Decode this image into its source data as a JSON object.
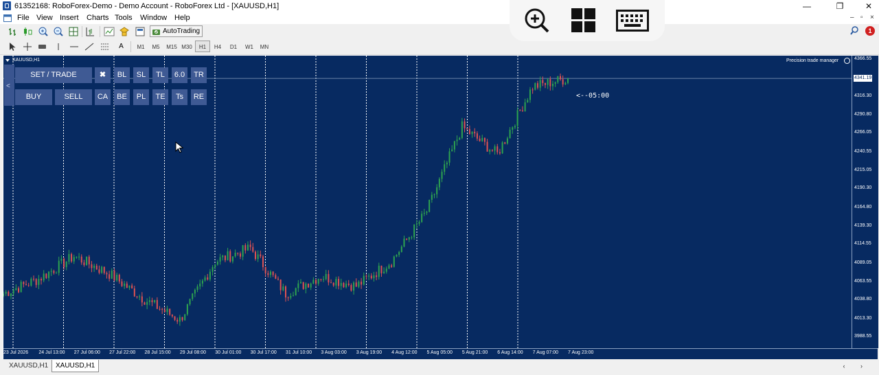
{
  "window": {
    "title": "61352168: RoboForex-Demo - Demo Account - RoboForex Ltd - [XAUUSD,H1]",
    "minimize_glyph": "—",
    "restore_glyph": "❐",
    "close_glyph": "✕"
  },
  "menu": {
    "items": [
      "File",
      "View",
      "Insert",
      "Charts",
      "Tools",
      "Window",
      "Help"
    ],
    "mdi_glyphs": [
      "–",
      "▫",
      "×"
    ]
  },
  "toolbar": {
    "autotrading_label": "AutoTrading",
    "timeframes": [
      "M1",
      "M5",
      "M15",
      "M30",
      "H1",
      "H4",
      "D1",
      "W1",
      "MN"
    ],
    "active_timeframe": "H1",
    "text_tool_label": "A",
    "alert_count": "1"
  },
  "overlay": {
    "icons": [
      "zoom-in-icon",
      "windows-icon",
      "keyboard-icon"
    ]
  },
  "chart": {
    "symbol_label": "XAUUSD,H1",
    "indicator_label": "Precision  trade manager",
    "countdown": "<--05:00",
    "current_price": "4341.19",
    "background": "#072a61",
    "bull_color": "#2ea44f",
    "bear_color": "#e05252",
    "price_axis": [
      "4366.55",
      "4341.19",
      "4316.30",
      "4290.80",
      "4266.05",
      "4240.55",
      "4215.05",
      "4190.30",
      "4164.80",
      "4139.30",
      "4114.55",
      "4089.05",
      "4063.55",
      "4038.80",
      "4013.30",
      "3988.55"
    ],
    "time_axis": [
      "23 Jul 2026",
      "24 Jul 13:00",
      "27 Jul 06:00",
      "27 Jul 22:00",
      "28 Jul 15:00",
      "29 Jul 08:00",
      "30 Jul 01:00",
      "30 Jul 17:00",
      "31 Jul 10:00",
      "3 Aug 03:00",
      "3 Aug 19:00",
      "4 Aug 12:00",
      "5 Aug 05:00",
      "5 Aug 21:00",
      "6 Aug 14:00",
      "7 Aug 07:00",
      "7 Aug 23:00"
    ]
  },
  "trade_panel": {
    "collapse_arrow": "<",
    "row1": [
      "SET / TRADE",
      "✖",
      "BL",
      "SL",
      "TL",
      "6.0",
      "TR"
    ],
    "row2": [
      "BUY",
      "SELL",
      "CA",
      "BE",
      "PL",
      "TE",
      "Ts",
      "RE"
    ]
  },
  "bottom_tabs": {
    "tabs": [
      "XAUUSD,H1",
      "XAUUSD,H1"
    ],
    "active_index": 1,
    "scroll_glyphs": "‹ ›"
  },
  "chart_data": {
    "type": "candlestick",
    "symbol": "XAUUSD",
    "timeframe": "H1",
    "ylim": [
      3988.55,
      4366.55
    ],
    "current_price": 4341.19,
    "x_ticks": [
      "23 Jul 2026",
      "24 Jul 13:00",
      "27 Jul 06:00",
      "27 Jul 22:00",
      "28 Jul 15:00",
      "29 Jul 08:00",
      "30 Jul 01:00",
      "30 Jul 17:00",
      "31 Jul 10:00",
      "3 Aug 03:00",
      "3 Aug 19:00",
      "4 Aug 12:00",
      "5 Aug 05:00",
      "5 Aug 21:00",
      "6 Aug 14:00",
      "7 Aug 07:00",
      "7 Aug 23:00"
    ],
    "period_separators": [
      "24 Jul",
      "27 Jul",
      "28 Jul",
      "29 Jul",
      "30 Jul",
      "31 Jul",
      "3 Aug",
      "4 Aug",
      "5 Aug",
      "6 Aug",
      "7 Aug"
    ],
    "close_path": [
      {
        "x": "23 Jul 2026",
        "close": 4048
      },
      {
        "x": "24 Jul 13:00",
        "close": 4068
      },
      {
        "x": "27 Jul 06:00",
        "close": 4099
      },
      {
        "x": "27 Jul 22:00",
        "close": 4075
      },
      {
        "x": "28 Jul 15:00",
        "close": 4040
      },
      {
        "x": "29 Jul 08:00",
        "close": 4012
      },
      {
        "x": "30 Jul 01:00",
        "close": 4092
      },
      {
        "x": "30 Jul 17:00",
        "close": 4110
      },
      {
        "x": "31 Jul 10:00",
        "close": 4048
      },
      {
        "x": "3 Aug 03:00",
        "close": 4072
      },
      {
        "x": "3 Aug 19:00",
        "close": 4058
      },
      {
        "x": "4 Aug 12:00",
        "close": 4092
      },
      {
        "x": "5 Aug 05:00",
        "close": 4160
      },
      {
        "x": "5 Aug 21:00",
        "close": 4275
      },
      {
        "x": "6 Aug 14:00",
        "close": 4238
      },
      {
        "x": "7 Aug 07:00",
        "close": 4330
      },
      {
        "x": "7 Aug 23:00",
        "close": 4341.19
      }
    ]
  }
}
